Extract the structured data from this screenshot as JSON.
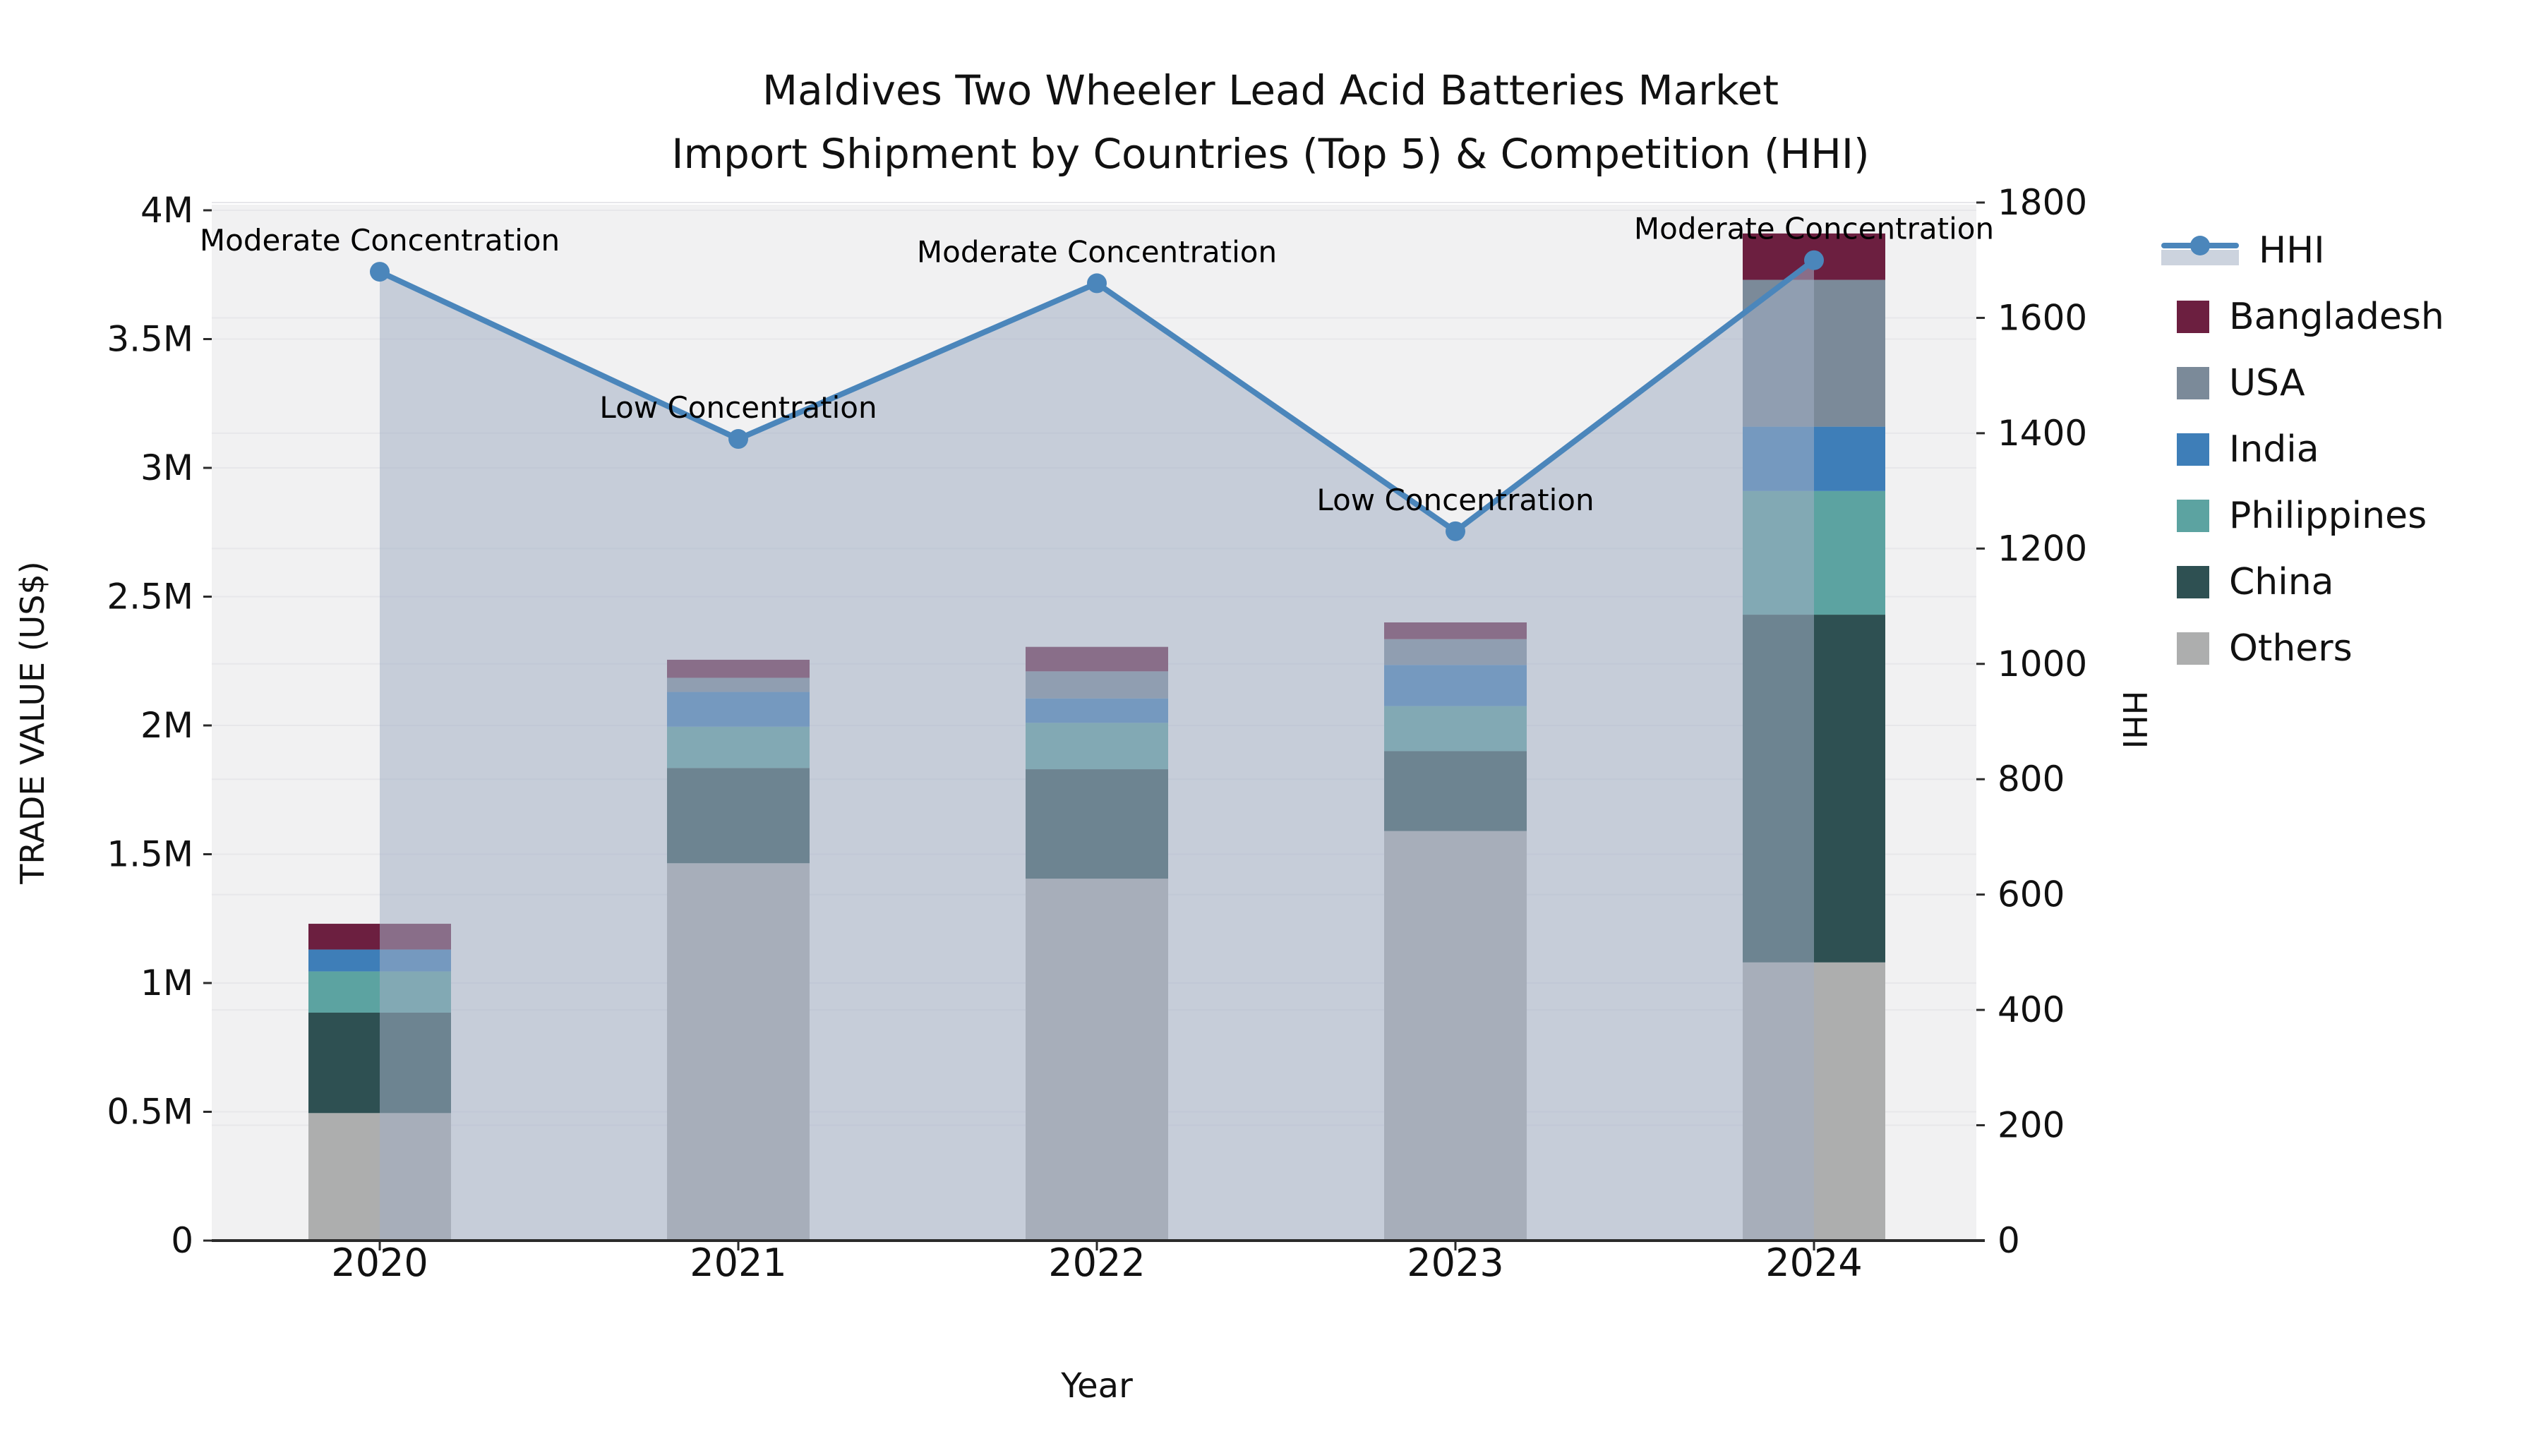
{
  "title": {
    "line1": "Maldives Two Wheeler Lead Acid Batteries Market",
    "line2": "Import Shipment by Countries (Top 5) & Competition (HHI)"
  },
  "chart_data": {
    "type": "combo-stacked-bar-line",
    "categories": [
      "2020",
      "2021",
      "2022",
      "2023",
      "2024"
    ],
    "bar_series": [
      {
        "name": "Others",
        "color": "#ADAEAE",
        "values": [
          495000,
          1465000,
          1405000,
          1590000,
          1080000
        ]
      },
      {
        "name": "China",
        "color": "#2E5052",
        "values": [
          390000,
          370000,
          425000,
          310000,
          1350000
        ]
      },
      {
        "name": "Philippines",
        "color": "#5CA3A1",
        "values": [
          160000,
          160000,
          180000,
          175000,
          480000
        ]
      },
      {
        "name": "India",
        "color": "#3E7EB8",
        "values": [
          85000,
          135000,
          95000,
          160000,
          250000
        ]
      },
      {
        "name": "USA",
        "color": "#7B8A99",
        "values": [
          0,
          55000,
          105000,
          100000,
          570000
        ]
      },
      {
        "name": "Bangladesh",
        "color": "#6C1F40",
        "values": [
          100000,
          70000,
          95000,
          65000,
          180000
        ]
      }
    ],
    "line_series": {
      "name": "HHI",
      "color": "#4B86BB",
      "area_color": "rgba(163,174,196,0.55)",
      "values": [
        1680,
        1390,
        1660,
        1230,
        1700
      ]
    },
    "annotations": [
      "Moderate Concentration",
      "Low Concentration",
      "Moderate Concentration",
      "Low Concentration",
      "Moderate Concentration"
    ],
    "y_left": {
      "label": "TRADE VALUE (US$)",
      "min": 0,
      "max": 4000000,
      "tick_step": 500000,
      "tick_labels": [
        "0",
        "0.5M",
        "1M",
        "1.5M",
        "2M",
        "2.5M",
        "3M",
        "3.5M",
        "4M"
      ]
    },
    "y_right": {
      "label": "HHI",
      "min": 0,
      "max": 1800,
      "tick_step": 200,
      "tick_labels": [
        "0",
        "200",
        "400",
        "600",
        "800",
        "1000",
        "1200",
        "1400",
        "1600",
        "1800"
      ]
    },
    "x": {
      "label": "Year"
    },
    "legend": {
      "position": "right",
      "items": [
        "HHI",
        "Bangladesh",
        "USA",
        "India",
        "Philippines",
        "China",
        "Others"
      ]
    },
    "style": {
      "plot_background": "#f1f1f2",
      "gridline_color": "#e7e7ea",
      "axis_color": "#2b2b2b",
      "text_color": "#111111"
    }
  }
}
